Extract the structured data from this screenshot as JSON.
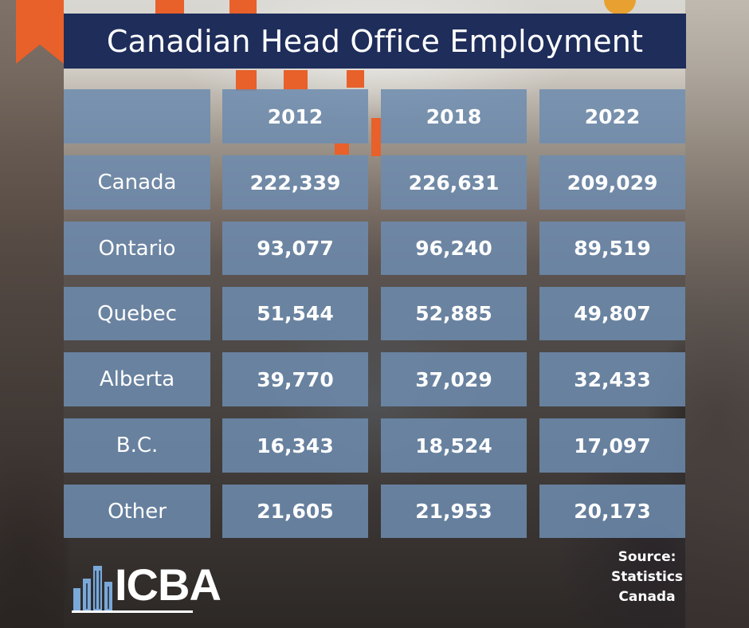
{
  "title": "Canadian Head Office Employment",
  "table": {
    "header": [
      "",
      "2012",
      "2018",
      "2022"
    ],
    "rows": [
      {
        "region": "Canada",
        "values": [
          "222,339",
          "226,631",
          "209,029"
        ]
      },
      {
        "region": "Ontario",
        "values": [
          "93,077",
          "96,240",
          "89,519"
        ]
      },
      {
        "region": "Quebec",
        "values": [
          "51,544",
          "52,885",
          "49,807"
        ]
      },
      {
        "region": "Alberta",
        "values": [
          "39,770",
          "37,029",
          "32,433"
        ]
      },
      {
        "region": "B.C.",
        "values": [
          "16,343",
          "18,524",
          "17,097"
        ]
      },
      {
        "region": "Other",
        "values": [
          "21,605",
          "21,953",
          "20,173"
        ]
      }
    ]
  },
  "source": {
    "line1": "Source:",
    "line2": "Statistics",
    "line3": "Canada"
  },
  "logo": {
    "text": "ICBA",
    "icon": "city-skyline-icon"
  },
  "colors": {
    "title_bg": "#1e2d5a",
    "cell_bg": "#6e8caf",
    "text": "#ffffff",
    "logo_bars": "#7aa8d8"
  }
}
